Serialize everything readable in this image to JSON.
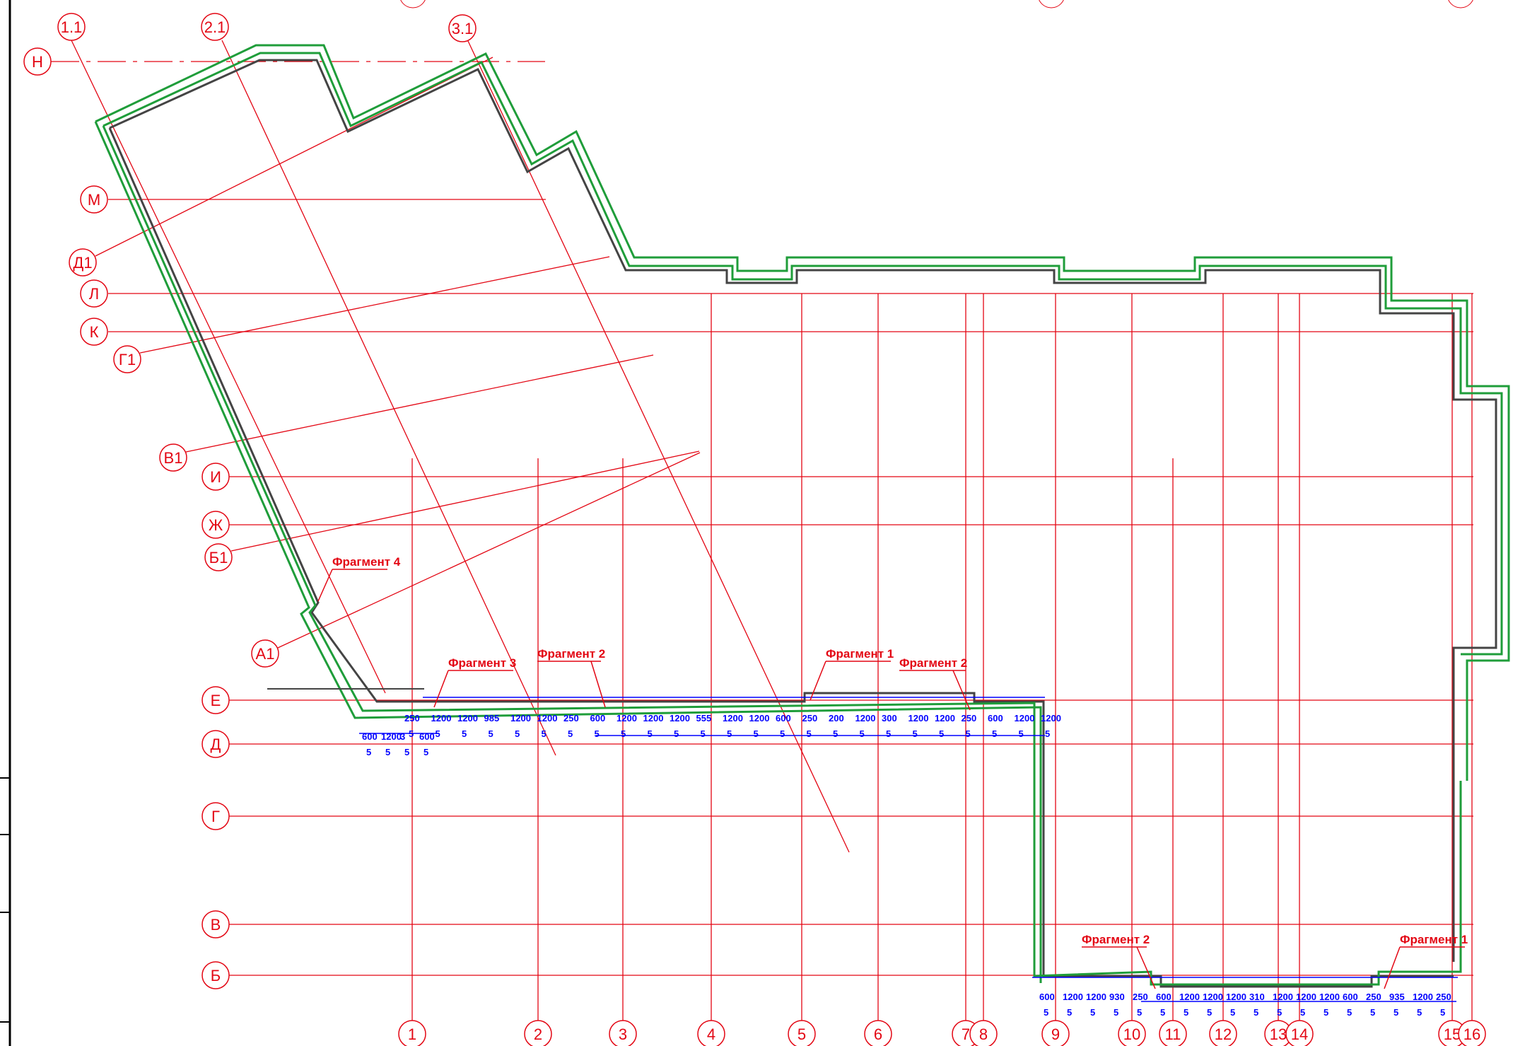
{
  "colors": {
    "grid": "#e30613",
    "wall": "#444444",
    "insulation": "#1f9d3a",
    "dimension": "#0000ff",
    "highlight": "#e30613",
    "frame": "#000000"
  },
  "axes": {
    "horizontal": [
      "Н",
      "М",
      "Л",
      "К",
      "И",
      "Ж",
      "Е",
      "Д",
      "Г",
      "В",
      "Б"
    ],
    "vertical": [
      "1",
      "2",
      "3",
      "4",
      "5",
      "6",
      "7",
      "8",
      "9",
      "10",
      "11",
      "12",
      "13",
      "14",
      "15",
      "16"
    ],
    "rotated_top": [
      "1.1",
      "2.1",
      "3.1"
    ],
    "rotated_left": [
      "Д1",
      "Г1",
      "В1",
      "Б1",
      "А1"
    ]
  },
  "fragments": [
    {
      "label": "Фрагмент 4"
    },
    {
      "label": "Фрагмент 3"
    },
    {
      "label": "Фрагмент 2"
    },
    {
      "label": "Фрагмент 1"
    },
    {
      "label": "Фрагмент 2"
    },
    {
      "label": "Фрагмент 2"
    },
    {
      "label": "Фрагмент 1"
    }
  ],
  "dims_upper": [
    "250",
    "1200",
    "1200",
    "985",
    "1200",
    "1200",
    "250",
    "600",
    "1200",
    "1200",
    "1200",
    "555",
    "1200",
    "1200",
    "600",
    "250",
    "200",
    "1200",
    "300",
    "1200",
    "1200",
    "250",
    "600",
    "1200",
    "1200"
  ],
  "dims_upper_left": [
    "600",
    "1200",
    "3",
    "600"
  ],
  "dims_lower": [
    "600",
    "1200",
    "1200",
    "930",
    "250",
    "600",
    "1200",
    "1200",
    "1200",
    "310",
    "1200",
    "1200",
    "1200",
    "600",
    "250",
    "935",
    "1200",
    "250"
  ],
  "step_label": "5"
}
